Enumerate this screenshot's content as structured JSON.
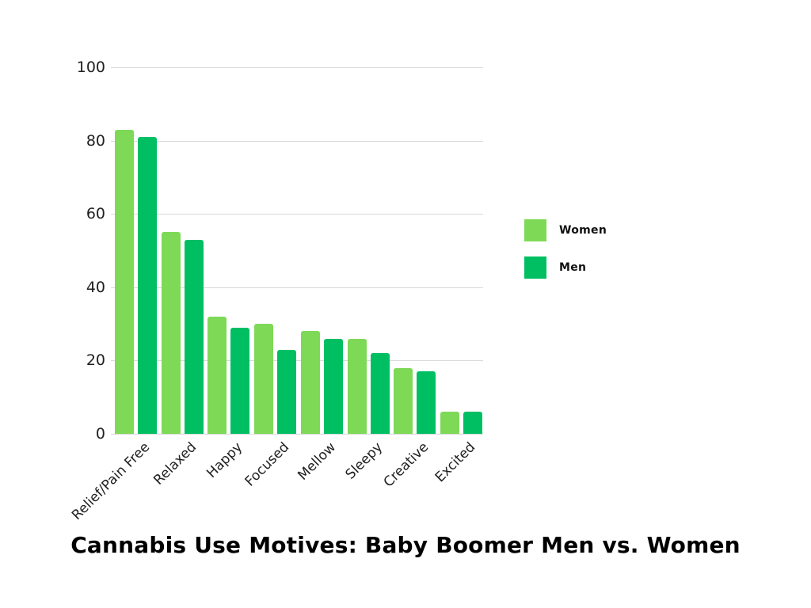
{
  "chart_data": {
    "type": "bar",
    "title": "Cannabis Use Motives: Baby Boomer Men vs. Women",
    "categories": [
      "Relief/Pain Free",
      "Relaxed",
      "Happy",
      "Focused",
      "Mellow",
      "Sleepy",
      "Creative",
      "Excited"
    ],
    "series": [
      {
        "name": "Women",
        "color": "#7ED957",
        "values": [
          83,
          55,
          32,
          30,
          28,
          26,
          18,
          6
        ]
      },
      {
        "name": "Men",
        "color": "#00BF63",
        "values": [
          81,
          53,
          29,
          23,
          26,
          22,
          17,
          6
        ]
      }
    ],
    "ylim": [
      0,
      100
    ],
    "yticks": [
      0,
      20,
      40,
      60,
      80,
      100
    ],
    "grid": true,
    "gridline_color": "#d9d9d9",
    "legend_position": "right",
    "background": "#ffffff",
    "xlabel": "",
    "ylabel": ""
  }
}
